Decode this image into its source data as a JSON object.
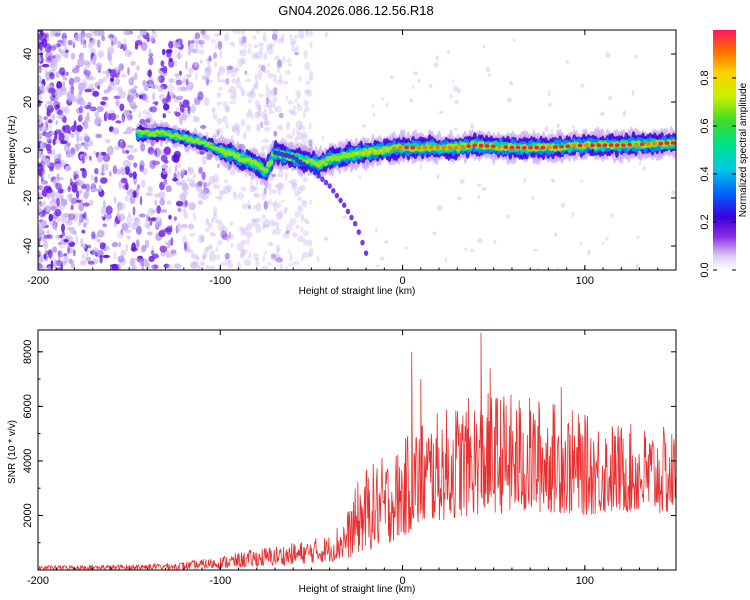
{
  "title": "GN04.2026.086.12.56.R18",
  "chart_data": [
    {
      "type": "heatmap",
      "title": "GN04.2026.086.12.56.R18",
      "xlabel": "Height of straight line (km)",
      "ylabel": "Frequency (Hz)",
      "xlim": [
        -200,
        150
      ],
      "ylim": [
        -50,
        50
      ],
      "xticks": [
        -200,
        -100,
        0,
        100
      ],
      "yticks": [
        -40,
        -20,
        0,
        20,
        40
      ],
      "colorbar": {
        "label": "Normalized spectral amplitude",
        "range": [
          0,
          1
        ],
        "ticks": [
          0.0,
          0.2,
          0.4,
          0.6,
          0.8
        ],
        "tick_labels": [
          "0.0",
          "0.2",
          "0.4",
          "0.6",
          "0.8"
        ]
      },
      "signal_track": {
        "x": [
          -145,
          -130,
          -120,
          -110,
          -100,
          -90,
          -80,
          -75,
          -70,
          -65,
          -60,
          -55,
          -50,
          -45,
          -40,
          -35,
          -30,
          -20,
          -10,
          0,
          10,
          20,
          30,
          40,
          60,
          80,
          100,
          120,
          150
        ],
        "y": [
          7,
          7,
          5,
          3,
          0,
          -3,
          -6,
          -9,
          -1,
          -2,
          -3,
          -4,
          -5,
          -6,
          -4,
          -3,
          -2,
          -1,
          0,
          1,
          1,
          1,
          1,
          2,
          1,
          1,
          2,
          2,
          3
        ]
      },
      "secondary_branch": {
        "x": [
          -70,
          -60,
          -50,
          -40,
          -32,
          -25,
          -20
        ],
        "y": [
          -1,
          -3,
          -8,
          -15,
          -23,
          -32,
          -43
        ]
      }
    },
    {
      "type": "line",
      "xlabel": "Height of straight line (km)",
      "ylabel": "SNR (10 * v/v)",
      "xlim": [
        -200,
        150
      ],
      "ylim": [
        0,
        8800
      ],
      "xticks": [
        -200,
        -100,
        0,
        100
      ],
      "yticks": [
        2000,
        4000,
        6000,
        8000
      ],
      "color": "#e83030",
      "envelope": {
        "x": [
          -200,
          -150,
          -120,
          -100,
          -80,
          -60,
          -40,
          -30,
          -25,
          -20,
          -10,
          0,
          5,
          10,
          20,
          30,
          40,
          50,
          60,
          80,
          100,
          120,
          150
        ],
        "low": [
          0,
          0,
          20,
          60,
          120,
          200,
          300,
          400,
          600,
          700,
          900,
          1200,
          1400,
          1600,
          1800,
          1900,
          2000,
          2100,
          2000,
          2100,
          2000,
          2100,
          2000
        ],
        "high": [
          180,
          220,
          300,
          500,
          800,
          1000,
          1300,
          2200,
          3200,
          3800,
          4200,
          4600,
          5400,
          5600,
          5800,
          6200,
          6400,
          6600,
          6500,
          6300,
          5700,
          5400,
          5200
        ]
      },
      "peaks": [
        {
          "x": 5,
          "y": 8000
        },
        {
          "x": 10,
          "y": 7000
        },
        {
          "x": 43,
          "y": 8700
        },
        {
          "x": 48,
          "y": 7400
        },
        {
          "x": 87,
          "y": 6700
        }
      ]
    }
  ]
}
